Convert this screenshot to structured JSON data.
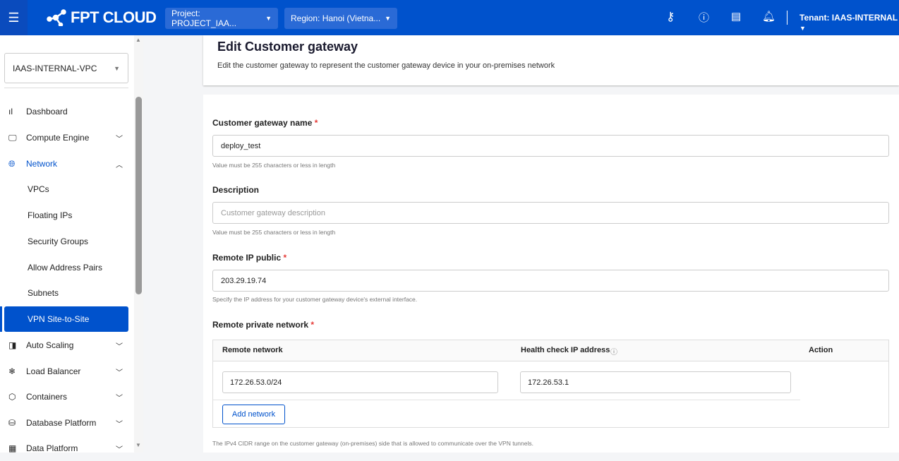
{
  "header": {
    "brand": "FPT CLOUD",
    "project": "Project: PROJECT_IAA...",
    "region": "Region: Hanoi (Vietna...",
    "tenant": "Tenant: IAAS-INTERNAL",
    "icons": [
      "key-icon",
      "help-chat-icon",
      "docs-book-icon",
      "bell-icon"
    ],
    "color": "#0052cc"
  },
  "sidebar": {
    "vpc": "IAAS-INTERNAL-VPC",
    "items": [
      {
        "label": "Dashboard",
        "icon": "bar-chart-icon"
      },
      {
        "label": "Compute Engine",
        "icon": "monitor-icon"
      },
      {
        "label": "Network",
        "icon": "globe-icon"
      },
      {
        "label": "VPCs"
      },
      {
        "label": "Floating IPs"
      },
      {
        "label": "Security Groups"
      },
      {
        "label": "Allow Address Pairs"
      },
      {
        "label": "Subnets"
      },
      {
        "label": "VPN Site-to-Site"
      },
      {
        "label": "Auto Scaling",
        "icon": "autoscale-icon"
      },
      {
        "label": "Load Balancer",
        "icon": "load-balancer-icon"
      },
      {
        "label": "Containers",
        "icon": "cube-icon"
      },
      {
        "label": "Database Platform",
        "icon": "database-icon"
      },
      {
        "label": "Data Platform",
        "icon": "data-platform-icon"
      }
    ]
  },
  "page": {
    "title": "Edit Customer gateway",
    "subtitle": "Edit the customer gateway to represent the customer gateway device in your on-premises network"
  },
  "form": {
    "name": {
      "label": "Customer gateway name",
      "required": "*",
      "value": "deploy_test",
      "hint": "Value must be 255 characters or less in length"
    },
    "description": {
      "label": "Description",
      "placeholder": "Customer gateway description",
      "hint": "Value must be 255 characters or less in length"
    },
    "remote_ip": {
      "label": "Remote IP public",
      "required": "*",
      "value": "203.29.19.74",
      "hint": "Specify the IP address for your customer gateway device's external interface."
    },
    "private_network": {
      "label": "Remote private network",
      "required": "*",
      "columns": [
        "Remote network",
        "Health check IP address",
        "Action"
      ],
      "rows": [
        {
          "network": "172.26.53.0/24",
          "health": "172.26.53.1"
        }
      ],
      "add_label": "Add network",
      "hint": "The IPv4 CIDR range on the customer gateway (on-premises) side that is allowed to communicate over the VPN tunnels."
    }
  }
}
